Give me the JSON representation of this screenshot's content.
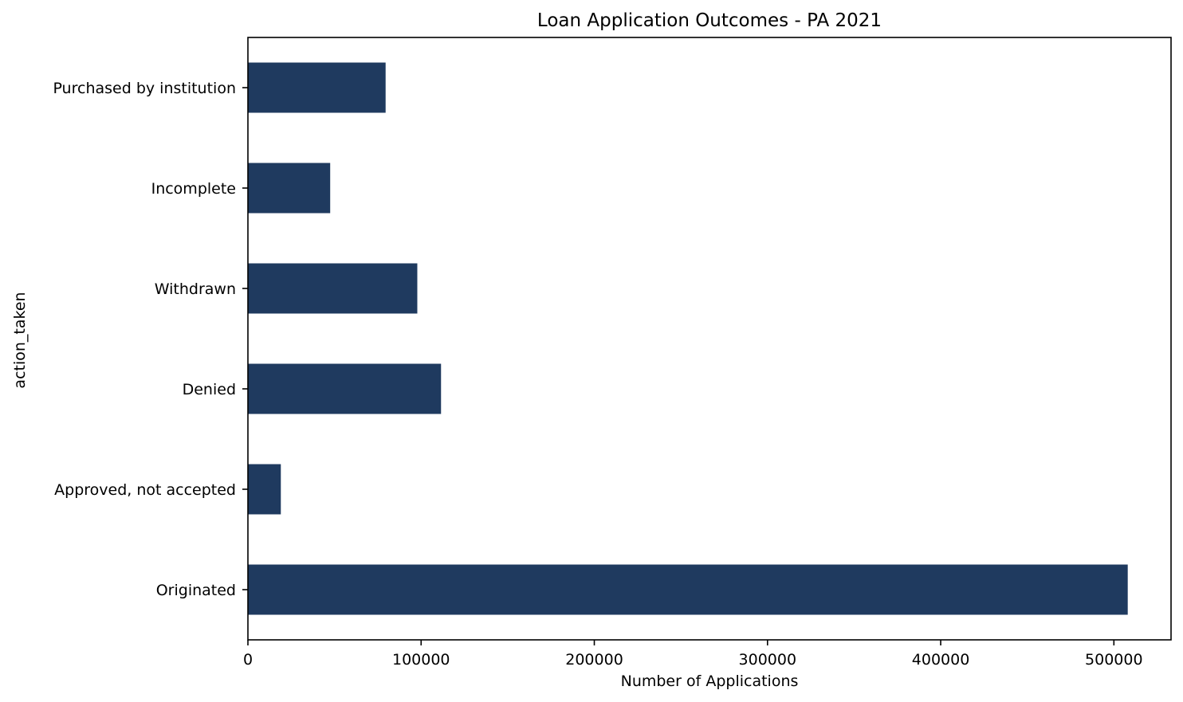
{
  "chart_data": {
    "type": "bar",
    "orientation": "horizontal",
    "title": "Loan Application Outcomes - PA 2021",
    "xlabel": "Number of Applications",
    "ylabel": "action_taken",
    "categories": [
      "Originated",
      "Approved, not accepted",
      "Denied",
      "Withdrawn",
      "Incomplete",
      "Purchased by institution"
    ],
    "values": [
      508000,
      19000,
      111500,
      97800,
      47500,
      79500
    ],
    "xlim": [
      0,
      533000
    ],
    "xticks": [
      0,
      100000,
      200000,
      300000,
      400000,
      500000
    ],
    "xtick_labels": [
      "0",
      "100000",
      "200000",
      "300000",
      "400000",
      "500000"
    ],
    "grid": false,
    "legend": "none",
    "bar_color": "#1f3a5f"
  }
}
